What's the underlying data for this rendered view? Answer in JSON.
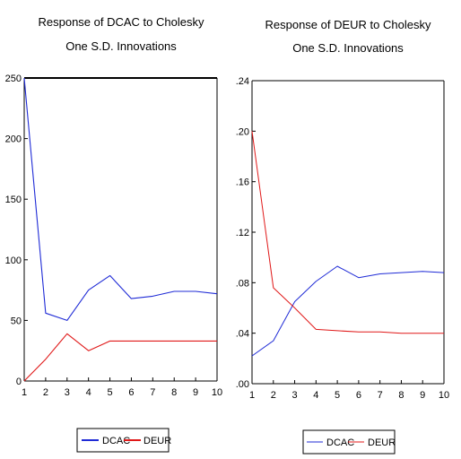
{
  "colors": {
    "dcac": "#1f2bd6",
    "deur": "#e01818",
    "frame": "#000000"
  },
  "chart_data": [
    {
      "type": "line",
      "title": "Response of DCAC to Cholesky",
      "subtitle": "One S.D. Innovations",
      "x": [
        1,
        2,
        3,
        4,
        5,
        6,
        7,
        8,
        9,
        10
      ],
      "x_tick_labels": [
        "1",
        "2",
        "3",
        "4",
        "5",
        "6",
        "7",
        "8",
        "9",
        "10"
      ],
      "ylim": [
        0,
        250
      ],
      "y_ticks": [
        0,
        50,
        100,
        150,
        200,
        250
      ],
      "y_tick_labels": [
        "0",
        "50",
        "100",
        "150",
        "200",
        "250"
      ],
      "grid": false,
      "legend_position": "bottom",
      "series": [
        {
          "name": "DCAC",
          "color": "#1f2bd6",
          "style": "solid",
          "values": [
            250,
            56,
            50,
            75,
            87,
            68,
            70,
            74,
            74,
            72
          ]
        },
        {
          "name": "DEUR",
          "color": "#e01818",
          "style": "solid",
          "values": [
            0,
            18,
            39,
            25,
            33,
            33,
            33,
            33,
            33,
            33
          ]
        }
      ]
    },
    {
      "type": "line",
      "title": "Response of DEUR to Cholesky",
      "subtitle": "One S.D. Innovations",
      "x": [
        1,
        2,
        3,
        4,
        5,
        6,
        7,
        8,
        9,
        10
      ],
      "x_tick_labels": [
        "1",
        "2",
        "3",
        "4",
        "5",
        "6",
        "7",
        "8",
        "9",
        "10"
      ],
      "ylim": [
        0,
        0.24
      ],
      "y_ticks": [
        0,
        0.04,
        0.08,
        0.12,
        0.16,
        0.2,
        0.24
      ],
      "y_tick_labels": [
        ".00",
        ".04",
        ".08",
        ".12",
        ".16",
        ".20",
        ".24"
      ],
      "grid": false,
      "legend_position": "bottom",
      "series": [
        {
          "name": "DCAC",
          "color": "#1f2bd6",
          "style": "thin",
          "values": [
            0.022,
            0.034,
            0.065,
            0.081,
            0.093,
            0.084,
            0.087,
            0.088,
            0.089,
            0.088
          ]
        },
        {
          "name": "DEUR",
          "color": "#e01818",
          "style": "thin",
          "values": [
            0.2,
            0.076,
            0.06,
            0.043,
            0.042,
            0.041,
            0.041,
            0.04,
            0.04,
            0.04
          ]
        }
      ]
    }
  ]
}
